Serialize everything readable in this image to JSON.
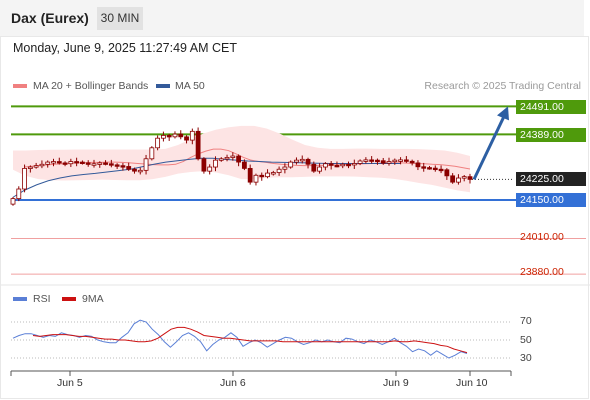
{
  "header": {
    "title": "Dax (Eurex)",
    "timeframe": "30 MIN"
  },
  "timestamp": "Monday, June 9, 2025 11:27:49 AM CET",
  "legend": {
    "ma20_bb": "MA 20 + Bollinger Bands",
    "ma50": "MA 50",
    "rsi": "RSI",
    "ma9": "9MA"
  },
  "watermark": "Research © 2025 Trading Central",
  "colors": {
    "ma20_bb": "#f08080",
    "ma50": "#335a9a",
    "candle": "#8b0000",
    "resistance": "#4f9a0c",
    "support": "#3370d6",
    "current_price": "#222222",
    "red_level": "#f0a0a0",
    "rsi": "#5a7fd6",
    "ma9": "#cc1111"
  },
  "chart_data": {
    "type": "candlestick",
    "x_ticks": [
      "Jun 5",
      "Jun 6",
      "Jun 9",
      "Jun 10"
    ],
    "price_levels": [
      {
        "value": "24491.00",
        "kind": "resistance"
      },
      {
        "value": "24389.00",
        "kind": "resistance"
      },
      {
        "value": "24225.00",
        "kind": "current"
      },
      {
        "value": "24150.00",
        "kind": "support"
      },
      {
        "value": "24010.00",
        "kind": "red"
      },
      {
        "value": "23880.00",
        "kind": "red"
      }
    ],
    "price_series": [
      24155,
      24190,
      24265,
      24270,
      24275,
      24280,
      24288,
      24290,
      24285,
      24282,
      24290,
      24288,
      24285,
      24280,
      24282,
      24285,
      24282,
      24278,
      24275,
      24272,
      24262,
      24255,
      24258,
      24300,
      24340,
      24375,
      24385,
      24380,
      24390,
      24380,
      24368,
      24400,
      24300,
      24255,
      24270,
      24295,
      24300,
      24305,
      24310,
      24288,
      24265,
      24215,
      24240,
      24235,
      24248,
      24250,
      24262,
      24270,
      24288,
      24295,
      24298,
      24280,
      24255,
      24270,
      24282,
      24276,
      24275,
      24280,
      24278,
      24283,
      24292,
      24296,
      24295,
      24293,
      24284,
      24290,
      24295,
      24296,
      24291,
      24285,
      24271,
      24268,
      24266,
      24262,
      24260,
      24238,
      24215,
      24230,
      24235,
      24225
    ],
    "ma20": [
      24270,
      24273,
      24276,
      24278,
      24280,
      24282,
      24284,
      24285,
      24286,
      24287,
      24287,
      24288,
      24288,
      24287,
      24285,
      24283,
      24281,
      24279,
      24278,
      24278,
      24280,
      24290,
      24305,
      24318,
      24328,
      24335,
      24335,
      24330,
      24318,
      24305,
      24295,
      24290,
      24287,
      24283,
      24280,
      24278,
      24276,
      24275,
      24275,
      24276,
      24276,
      24278,
      24279,
      24280,
      24281,
      24282,
      24283,
      24284,
      24285,
      24285,
      24285,
      24284,
      24283,
      24282,
      24280,
      24279,
      24276,
      24273,
      24268,
      24263
    ],
    "ma50": [
      24160,
      24186,
      24205,
      24220,
      24230,
      24238,
      24243,
      24247,
      24252,
      24257,
      24262,
      24271,
      24280,
      24288,
      24293,
      24298,
      24302,
      24302,
      24298,
      24295,
      24292,
      24290,
      24288,
      24287,
      24286,
      24285,
      24284,
      24283,
      24283,
      24283,
      24283,
      24283,
      24283,
      24283
    ],
    "ma50_end_index": 67,
    "bb_upper": [
      24330,
      24330,
      24332,
      24333,
      24333,
      24334,
      24334,
      24334,
      24334,
      24334,
      24334,
      24334,
      24336,
      24350,
      24372,
      24392,
      24406,
      24415,
      24420,
      24420,
      24410,
      24392,
      24370,
      24350,
      24340,
      24336,
      24336,
      24337,
      24337,
      24336,
      24336,
      24336,
      24335,
      24333,
      24330,
      24322,
      24310
    ],
    "bb_lower": [
      24260,
      24238,
      24226,
      24222,
      24221,
      24222,
      24223,
      24224,
      24223,
      24222,
      24222,
      24226,
      24234,
      24246,
      24252,
      24255,
      24250,
      24240,
      24226,
      24226,
      24231,
      24233,
      24233,
      24234,
      24236,
      24236,
      24236,
      24235,
      24233,
      24231,
      24227,
      24220,
      24212,
      24205,
      24195,
      24185,
      24178
    ],
    "bb_end_index": 79,
    "forecast_arrow": {
      "from": "24225.00",
      "to": "24491.00"
    },
    "rsi": {
      "ticks": [
        "70",
        "50",
        "30"
      ],
      "rsi_series": [
        52,
        55,
        57,
        57,
        55,
        53,
        55,
        54,
        58,
        56,
        55,
        53,
        55,
        54,
        50,
        48,
        47,
        47,
        53,
        58,
        68,
        72,
        70,
        62,
        56,
        48,
        42,
        48,
        55,
        58,
        54,
        48,
        38,
        45,
        50,
        53,
        58,
        53,
        43,
        47,
        50,
        47,
        42,
        46,
        50,
        53,
        52,
        48,
        45,
        47,
        50,
        48,
        50,
        48,
        47,
        52,
        51,
        48,
        46,
        50,
        48,
        45,
        48,
        52,
        47,
        43,
        37,
        40,
        38,
        33,
        38,
        34,
        30,
        33,
        37,
        35
      ],
      "ma9_series": [
        55,
        54,
        55,
        56,
        56,
        56,
        55,
        54,
        54,
        53,
        52,
        51,
        51,
        50,
        50,
        49,
        48,
        48,
        49,
        52,
        57,
        62,
        64,
        64,
        62,
        59,
        55,
        54,
        53,
        52,
        52,
        51,
        50,
        49,
        49,
        49,
        49,
        49,
        48,
        48,
        48,
        48,
        48,
        48,
        48,
        48,
        48,
        48,
        48,
        48,
        48,
        48,
        48,
        48,
        48,
        49,
        48,
        48,
        49,
        48,
        47,
        46,
        44,
        43,
        40,
        38,
        36
      ]
    }
  }
}
